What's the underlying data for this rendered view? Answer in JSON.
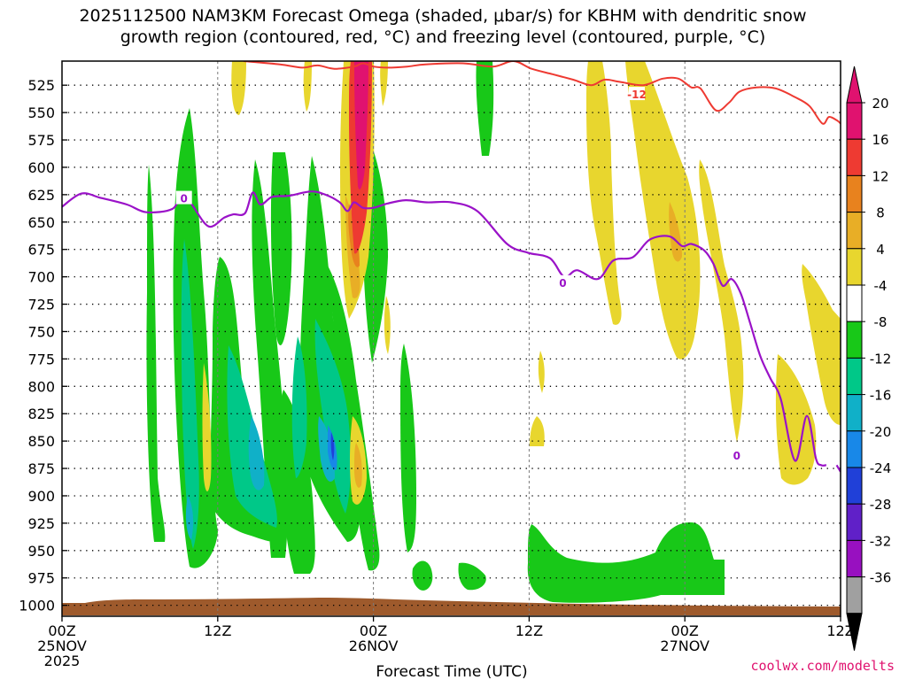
{
  "chart_data": {
    "type": "time-height cross section",
    "title_line1": "2025112500 NAM3KM Forecast Omega (shaded, μbar/s) for KBHM with dendritic snow",
    "title_line2": "growth region (contoured, red, °C) and freezing level (contoured, purple, °C)",
    "xlabel": "Forecast Time (UTC)",
    "credit": "coolwx.com/modelts",
    "x_range_hours": [
      0,
      60
    ],
    "x_ticks": [
      {
        "h": 0,
        "lines": [
          "00Z",
          "25NOV",
          "2025"
        ]
      },
      {
        "h": 12,
        "lines": [
          "12Z"
        ]
      },
      {
        "h": 24,
        "lines": [
          "00Z",
          "26NOV"
        ]
      },
      {
        "h": 36,
        "lines": [
          "12Z"
        ]
      },
      {
        "h": 48,
        "lines": [
          "00Z",
          "27NOV"
        ]
      },
      {
        "h": 60,
        "lines": [
          "12Z"
        ]
      }
    ],
    "y_range_mb": [
      1010,
      503
    ],
    "y_ticks": [
      525,
      550,
      575,
      600,
      625,
      650,
      675,
      700,
      725,
      750,
      775,
      800,
      825,
      850,
      875,
      900,
      925,
      950,
      975,
      1000
    ],
    "colorbar": {
      "labels": [
        "20",
        "16",
        "12",
        "8",
        "4",
        "-4",
        "-8",
        "-12",
        "-16",
        "-20",
        "-24",
        "-28",
        "-32",
        "-36"
      ],
      "colors": [
        "#e0126f",
        "#ee3a32",
        "#e8821e",
        "#e8ae26",
        "#e8d62e",
        "#ffffff",
        "#18c818",
        "#00c888",
        "#10b0c8",
        "#1888e8",
        "#2040d8",
        "#6020c8",
        "#9810c0",
        "#a0a0a0"
      ]
    },
    "contour_labels": {
      "freezing": "0",
      "dendritic": "-12"
    },
    "freezing_level_0C": {
      "hours": [
        0,
        1.5,
        3,
        5,
        6.5,
        8.5,
        9.2,
        10,
        11.3,
        12.5,
        13.2,
        14.1,
        14.7,
        15.3,
        16.2,
        17.5,
        19.2,
        20.3,
        21.4,
        22,
        22.5,
        23.2,
        24,
        25.1,
        26.5,
        28.1,
        30,
        32,
        34.3,
        35.9,
        37.6,
        38.7,
        39.7,
        41.3,
        42.5,
        44,
        45.3,
        46.8,
        47.8,
        48.5,
        49.5,
        50.2,
        50.9,
        51.6,
        52.3,
        53,
        53.8,
        54.6,
        55.4,
        56.5,
        57.4,
        58.1,
        58.5,
        58.9
      ],
      "levels": [
        636,
        624,
        628,
        634,
        641,
        638,
        625,
        634,
        654,
        646,
        643,
        642,
        623,
        634,
        627,
        626,
        622,
        625,
        632,
        640,
        632,
        637,
        637,
        633,
        630,
        632,
        632,
        640,
        670,
        678,
        683,
        700,
        694,
        702,
        685,
        682,
        666,
        663,
        672,
        670,
        676,
        688,
        708,
        702,
        715,
        741,
        772,
        793,
        812,
        868,
        827,
        866,
        872,
        872
      ]
    },
    "dendritic_minus12C": {
      "hours": [
        14,
        16.8,
        18.5,
        19.7,
        21,
        22.5,
        23.2,
        24,
        25.1,
        26.6,
        28,
        30.9,
        33.2,
        34.8,
        36.2,
        37.8,
        39.4,
        40.8,
        41.8,
        43,
        44.8,
        46.3,
        47.5,
        48.5,
        49.2,
        50.4,
        51.4,
        52.2,
        53.5,
        55,
        56.5,
        57.6,
        58.6,
        59.1,
        59.7,
        60
      ],
      "levels": [
        503,
        506,
        509,
        507,
        510,
        508,
        505,
        508,
        509,
        508,
        506,
        505,
        508,
        503,
        510,
        515,
        520,
        525,
        520,
        522,
        525,
        519,
        519,
        527,
        528,
        548,
        541,
        531,
        527,
        528,
        536,
        544,
        560,
        554,
        557,
        560
      ]
    }
  }
}
